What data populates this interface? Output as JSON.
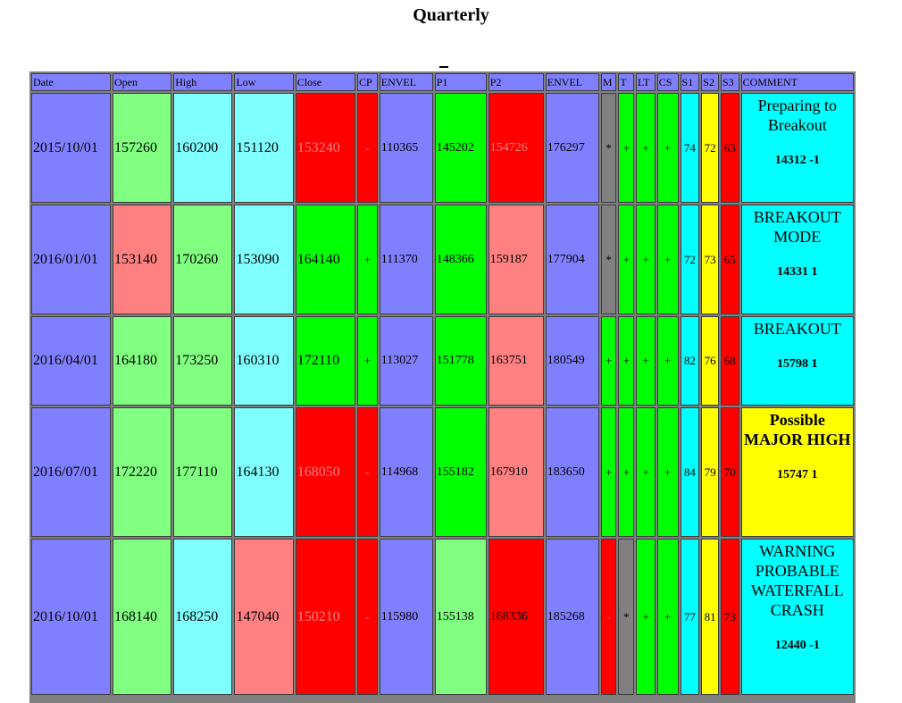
{
  "page": {
    "title": "Quarterly"
  },
  "headers": [
    "Date",
    "Open",
    "High",
    "Low",
    "Close",
    "CP",
    "ENVEL",
    "P1",
    "P2",
    "ENVEL",
    "M",
    "T",
    "LT",
    "CS",
    "S1",
    "S2",
    "S3",
    "COMMENT"
  ],
  "rows": [
    {
      "date": "2015/10/01",
      "open": "157260",
      "high": "160200",
      "low": "151120",
      "close": "153240",
      "cp": "-",
      "envel1": "110365",
      "p1": "145202",
      "p2": "154726",
      "envel2": "176297",
      "m": "*",
      "t": "+",
      "lt": "+",
      "cs": "+",
      "s1": "74",
      "s2": "72",
      "s3": "63",
      "comment": "Preparing to Breakout",
      "code": "14312 -1"
    },
    {
      "date": "2016/01/01",
      "open": "153140",
      "high": "170260",
      "low": "153090",
      "close": "164140",
      "cp": "+",
      "envel1": "111370",
      "p1": "148366",
      "p2": "159187",
      "envel2": "177904",
      "m": "*",
      "t": "+",
      "lt": "+",
      "cs": "+",
      "s1": "72",
      "s2": "73",
      "s3": "65",
      "comment": "BREAKOUT MODE",
      "code": "14331 1"
    },
    {
      "date": "2016/04/01",
      "open": "164180",
      "high": "173250",
      "low": "160310",
      "close": "172110",
      "cp": "+",
      "envel1": "113027",
      "p1": "151778",
      "p2": "163751",
      "envel2": "180549",
      "m": "+",
      "t": "+",
      "lt": "+",
      "cs": "+",
      "s1": "82",
      "s2": "76",
      "s3": "68",
      "comment": "BREAKOUT",
      "code": "15798 1"
    },
    {
      "date": "2016/07/01",
      "open": "172220",
      "high": "177110",
      "low": "164130",
      "close": "168050",
      "cp": "-",
      "envel1": "114968",
      "p1": "155182",
      "p2": "167910",
      "envel2": "183650",
      "m": "+",
      "t": "+",
      "lt": "+",
      "cs": "+",
      "s1": "84",
      "s2": "79",
      "s3": "70",
      "comment": "Possible MAJOR HIGH",
      "code": "15747 1"
    },
    {
      "date": "2016/10/01",
      "open": "168140",
      "high": "168250",
      "low": "147040",
      "close": "150210",
      "cp": "-",
      "envel1": "115980",
      "p1": "155138",
      "p2": "168336",
      "envel2": "185268",
      "m": "-",
      "t": "*",
      "lt": "+",
      "cs": "+",
      "s1": "77",
      "s2": "81",
      "s3": "73",
      "comment": "WARNING PROBABLE WATERFALL CRASH",
      "code": "12440 -1"
    }
  ]
}
